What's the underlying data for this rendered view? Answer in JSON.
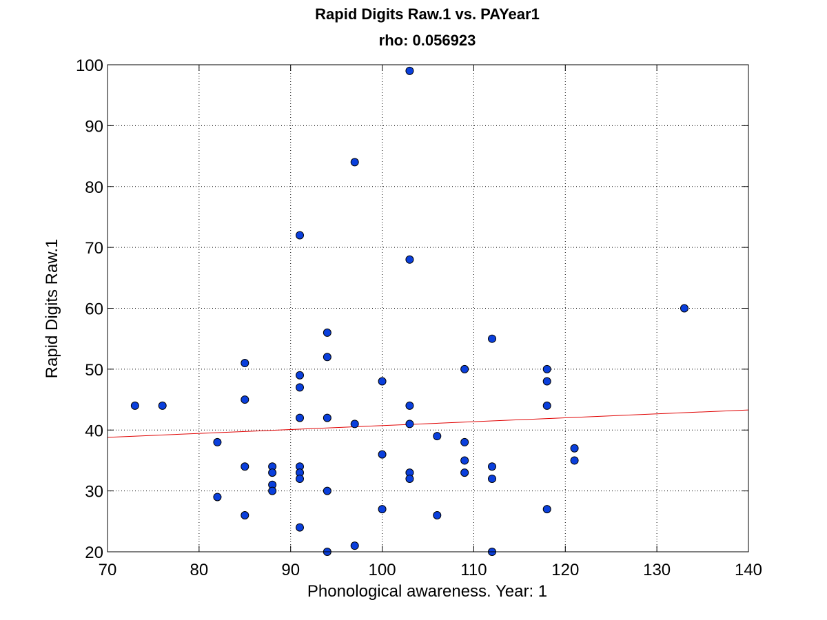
{
  "chart_data": {
    "type": "scatter",
    "title": "Rapid Digits Raw.1 vs. PAYear1",
    "subtitle": "rho: 0.056923",
    "xlabel": "Phonological awareness. Year: 1",
    "ylabel": "Rapid Digits Raw.1",
    "xlim": [
      70,
      140
    ],
    "ylim": [
      20,
      100
    ],
    "xticks": [
      70,
      80,
      90,
      100,
      110,
      120,
      130,
      140
    ],
    "yticks": [
      20,
      30,
      40,
      50,
      60,
      70,
      80,
      90,
      100
    ],
    "grid": true,
    "legend": false,
    "colors": {
      "marker_fill": "#0a3fdc",
      "marker_edge": "#000000",
      "fit_line": "#e00000"
    },
    "points": [
      {
        "x": 73,
        "y": 44
      },
      {
        "x": 76,
        "y": 44
      },
      {
        "x": 82,
        "y": 38
      },
      {
        "x": 82,
        "y": 29
      },
      {
        "x": 85,
        "y": 51
      },
      {
        "x": 85,
        "y": 45
      },
      {
        "x": 85,
        "y": 34
      },
      {
        "x": 85,
        "y": 26
      },
      {
        "x": 88,
        "y": 34
      },
      {
        "x": 88,
        "y": 33
      },
      {
        "x": 88,
        "y": 31
      },
      {
        "x": 88,
        "y": 30
      },
      {
        "x": 91,
        "y": 72
      },
      {
        "x": 91,
        "y": 49
      },
      {
        "x": 91,
        "y": 47
      },
      {
        "x": 91,
        "y": 42
      },
      {
        "x": 91,
        "y": 34
      },
      {
        "x": 91,
        "y": 33
      },
      {
        "x": 91,
        "y": 32
      },
      {
        "x": 91,
        "y": 24
      },
      {
        "x": 94,
        "y": 56
      },
      {
        "x": 94,
        "y": 52
      },
      {
        "x": 94,
        "y": 42
      },
      {
        "x": 94,
        "y": 30
      },
      {
        "x": 94,
        "y": 20
      },
      {
        "x": 97,
        "y": 84
      },
      {
        "x": 97,
        "y": 41
      },
      {
        "x": 97,
        "y": 21
      },
      {
        "x": 100,
        "y": 48
      },
      {
        "x": 100,
        "y": 36
      },
      {
        "x": 100,
        "y": 27
      },
      {
        "x": 103,
        "y": 99
      },
      {
        "x": 103,
        "y": 68
      },
      {
        "x": 103,
        "y": 44
      },
      {
        "x": 103,
        "y": 41
      },
      {
        "x": 103,
        "y": 33
      },
      {
        "x": 103,
        "y": 32
      },
      {
        "x": 106,
        "y": 39
      },
      {
        "x": 106,
        "y": 26
      },
      {
        "x": 109,
        "y": 50
      },
      {
        "x": 109,
        "y": 38
      },
      {
        "x": 109,
        "y": 35
      },
      {
        "x": 109,
        "y": 33
      },
      {
        "x": 112,
        "y": 55
      },
      {
        "x": 112,
        "y": 34
      },
      {
        "x": 112,
        "y": 32
      },
      {
        "x": 112,
        "y": 20
      },
      {
        "x": 118,
        "y": 50
      },
      {
        "x": 118,
        "y": 48
      },
      {
        "x": 118,
        "y": 44
      },
      {
        "x": 118,
        "y": 27
      },
      {
        "x": 121,
        "y": 37
      },
      {
        "x": 121,
        "y": 35
      },
      {
        "x": 133,
        "y": 60
      }
    ],
    "fit_line": {
      "x": [
        70,
        140
      ],
      "y": [
        38.8,
        43.3
      ]
    }
  }
}
